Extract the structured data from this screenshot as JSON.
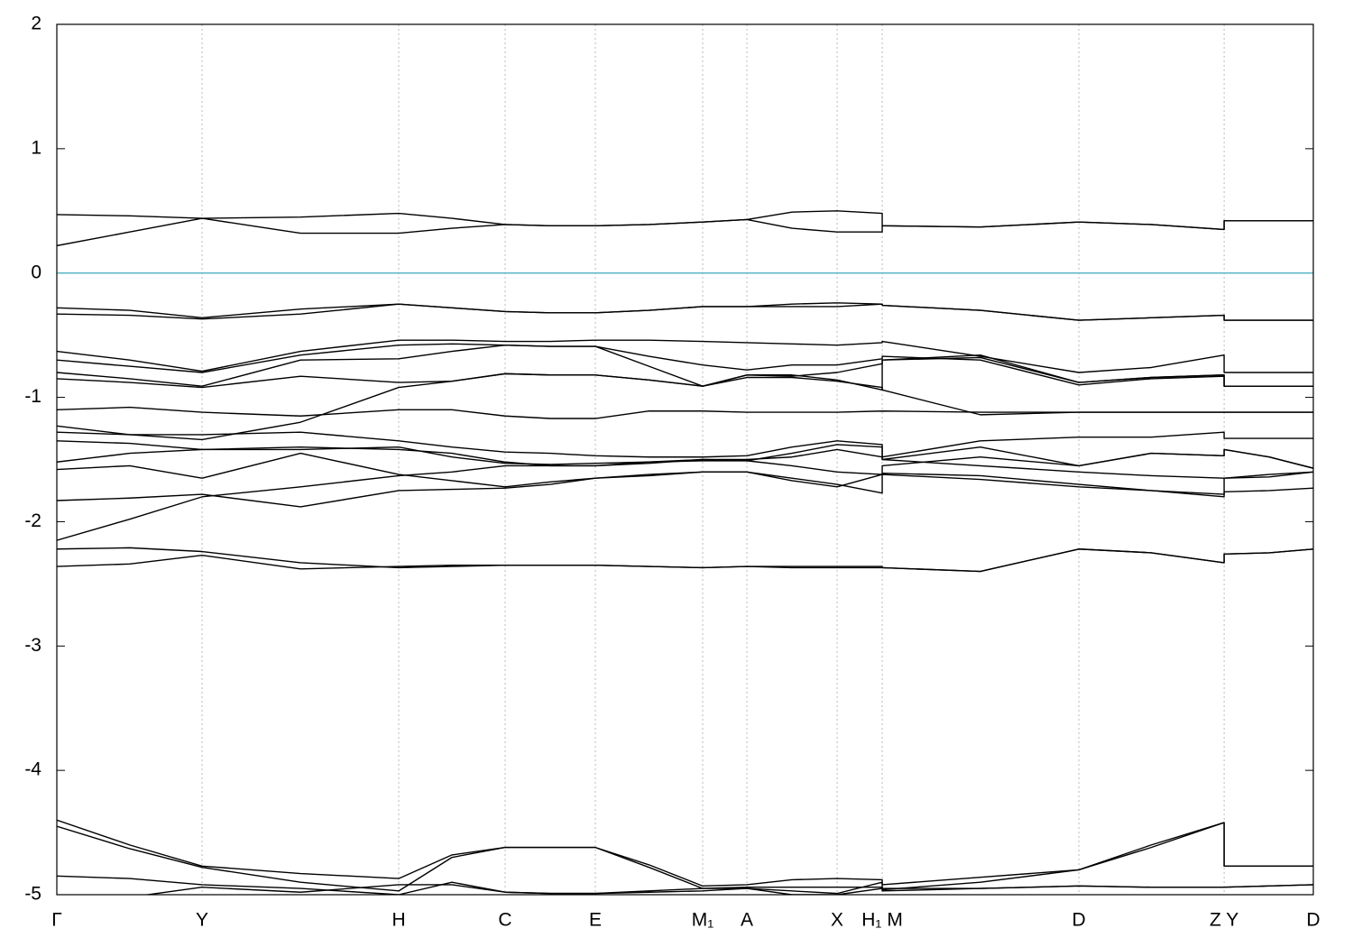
{
  "chart_data": {
    "type": "line",
    "x": [
      0,
      0.058,
      0.1156,
      0.194,
      0.2721,
      0.3145,
      0.3568,
      0.3927,
      0.4286,
      0.4713,
      0.514,
      0.5492,
      0.585,
      0.621,
      0.6569,
      0.6569,
      0.735,
      0.8134,
      0.871,
      0.929,
      0.929,
      0.965,
      1
    ],
    "xlim": [
      0,
      1
    ],
    "xticks": [
      {
        "value": 0,
        "label": "Γ"
      },
      {
        "value": 0.1156,
        "label": "Y"
      },
      {
        "value": 0.2721,
        "label": "H"
      },
      {
        "value": 0.3568,
        "label": "C"
      },
      {
        "value": 0.4286,
        "label": "E"
      },
      {
        "value": 0.514,
        "label": "M₁"
      },
      {
        "value": 0.5492,
        "label": "A"
      },
      {
        "value": 0.621,
        "label": "X"
      },
      {
        "value": 0.6569,
        "label": "H₁ M"
      },
      {
        "value": 0.8134,
        "label": "D"
      },
      {
        "value": 0.929,
        "label": "Z Y"
      },
      {
        "value": 1,
        "label": "D"
      }
    ],
    "ylim": [
      -5,
      2
    ],
    "yticks": [
      -5,
      -4,
      -3,
      -2,
      -1,
      0,
      1,
      2
    ],
    "grid": true,
    "zero_line_color": "#5ab4c8",
    "series": [
      {
        "color": "#000000",
        "values": [
          0.47,
          0.46,
          0.44,
          0.45,
          0.48,
          0.44,
          0.39,
          0.38,
          0.38,
          0.39,
          0.41,
          0.43,
          0.49,
          0.5,
          0.48,
          0.38,
          0.37,
          0.41,
          0.39,
          0.35,
          0.42,
          0.42,
          0.42
        ]
      },
      {
        "color": "#000000",
        "values": [
          0.22,
          0.33,
          0.44,
          0.32,
          0.32,
          0.36,
          0.39,
          0.38,
          0.38,
          0.39,
          0.41,
          0.43,
          0.36,
          0.33,
          0.33,
          0.38,
          0.37,
          0.41,
          0.39,
          0.35,
          0.42,
          0.42,
          0.42
        ]
      },
      {
        "color": "#000000",
        "values": [
          -0.28,
          -0.3,
          -0.36,
          -0.29,
          -0.25,
          -0.28,
          -0.31,
          -0.32,
          -0.32,
          -0.3,
          -0.27,
          -0.27,
          -0.25,
          -0.24,
          -0.25,
          -0.26,
          -0.3,
          -0.38,
          -0.36,
          -0.34,
          -0.38,
          -0.38,
          -0.38
        ]
      },
      {
        "color": "#000000",
        "values": [
          -0.33,
          -0.34,
          -0.37,
          -0.33,
          -0.25,
          -0.28,
          -0.31,
          -0.32,
          -0.32,
          -0.3,
          -0.27,
          -0.27,
          -0.27,
          -0.27,
          -0.25,
          -0.26,
          -0.3,
          -0.38,
          -0.36,
          -0.34,
          -0.38,
          -0.38,
          -0.38
        ]
      },
      {
        "color": "#000000",
        "values": [
          -0.63,
          -0.7,
          -0.79,
          -0.63,
          -0.54,
          -0.54,
          -0.55,
          -0.55,
          -0.54,
          -0.54,
          -0.55,
          -0.56,
          -0.57,
          -0.58,
          -0.56,
          -0.55,
          -0.67,
          -0.8,
          -0.76,
          -0.66,
          -0.8,
          -0.8,
          -0.8
        ]
      },
      {
        "color": "#000000",
        "values": [
          -0.7,
          -0.75,
          -0.8,
          -0.66,
          -0.58,
          -0.57,
          -0.58,
          -0.59,
          -0.59,
          -0.67,
          -0.74,
          -0.78,
          -0.74,
          -0.74,
          -0.69,
          -0.67,
          -0.7,
          -0.9,
          -0.85,
          -0.83,
          -0.91,
          -0.91,
          -0.91
        ]
      },
      {
        "color": "#000000",
        "values": [
          -0.8,
          -0.85,
          -0.91,
          -0.7,
          -0.69,
          -0.63,
          -0.58,
          -0.59,
          -0.59,
          -0.75,
          -0.91,
          -0.82,
          -0.83,
          -0.8,
          -0.73,
          -0.7,
          -0.66,
          -0.88,
          -0.84,
          -0.82,
          -0.91,
          -0.91,
          -0.91
        ]
      },
      {
        "color": "#000000",
        "values": [
          -0.85,
          -0.88,
          -0.92,
          -0.83,
          -0.88,
          -0.87,
          -0.81,
          -0.82,
          -0.82,
          -0.86,
          -0.91,
          -0.84,
          -0.84,
          -0.87,
          -0.92,
          -0.94,
          -1.14,
          -1.12,
          -1.12,
          -1.12,
          -1.12,
          -1.12,
          -1.12
        ]
      },
      {
        "color": "#000000",
        "values": [
          -1.1,
          -1.08,
          -1.12,
          -1.15,
          -1.1,
          -1.1,
          -1.15,
          -1.17,
          -1.17,
          -1.11,
          -1.11,
          -1.12,
          -1.12,
          -1.12,
          -1.11,
          -1.11,
          -1.12,
          -1.12,
          -1.12,
          -1.12,
          -1.12,
          -1.12,
          -1.12
        ]
      },
      {
        "color": "#000000",
        "values": [
          -1.23,
          -1.3,
          -1.34,
          -1.2,
          -0.92,
          -0.87,
          -0.81,
          -0.82,
          -0.82,
          -0.86,
          -0.91,
          -0.82,
          -0.82,
          -0.86,
          -0.94,
          -0.7,
          -0.68,
          -0.88,
          -0.84,
          -0.82,
          -0.91,
          -0.91,
          -0.91
        ]
      },
      {
        "color": "#000000",
        "values": [
          -1.28,
          -1.3,
          -1.3,
          -1.28,
          -1.35,
          -1.4,
          -1.44,
          -1.45,
          -1.47,
          -1.48,
          -1.48,
          -1.47,
          -1.4,
          -1.35,
          -1.38,
          -1.48,
          -1.35,
          -1.32,
          -1.32,
          -1.28,
          -1.33,
          -1.33,
          -1.33
        ]
      },
      {
        "color": "#000000",
        "values": [
          -1.35,
          -1.37,
          -1.42,
          -1.4,
          -1.42,
          -1.45,
          -1.52,
          -1.55,
          -1.55,
          -1.52,
          -1.5,
          -1.51,
          -1.45,
          -1.38,
          -1.4,
          -1.5,
          -1.55,
          -1.6,
          -1.63,
          -1.65,
          -1.65,
          -1.62,
          -1.6
        ]
      },
      {
        "color": "#000000",
        "values": [
          -1.52,
          -1.45,
          -1.42,
          -1.42,
          -1.4,
          -1.48,
          -1.53,
          -1.54,
          -1.53,
          -1.52,
          -1.51,
          -1.51,
          -1.55,
          -1.6,
          -1.62,
          -1.55,
          -1.48,
          -1.55,
          -1.45,
          -1.47,
          -1.42,
          -1.48,
          -1.57
        ]
      },
      {
        "color": "#000000",
        "values": [
          -1.58,
          -1.55,
          -1.65,
          -1.45,
          -1.62,
          -1.67,
          -1.72,
          -1.68,
          -1.65,
          -1.62,
          -1.6,
          -1.6,
          -1.67,
          -1.72,
          -1.62,
          -1.62,
          -1.66,
          -1.72,
          -1.75,
          -1.8,
          -1.76,
          -1.75,
          -1.73
        ]
      },
      {
        "color": "#000000",
        "values": [
          -1.83,
          -1.81,
          -1.78,
          -1.88,
          -1.75,
          -1.74,
          -1.73,
          -1.7,
          -1.65,
          -1.63,
          -1.6,
          -1.6,
          -1.65,
          -1.7,
          -1.77,
          -1.61,
          -1.63,
          -1.7,
          -1.75,
          -1.78,
          -1.65,
          -1.64,
          -1.6
        ]
      },
      {
        "color": "#000000",
        "values": [
          -2.15,
          -1.98,
          -1.8,
          -1.72,
          -1.63,
          -1.6,
          -1.55,
          -1.55,
          -1.55,
          -1.53,
          -1.5,
          -1.5,
          -1.48,
          -1.42,
          -1.48,
          -1.5,
          -1.4,
          -1.55,
          -1.45,
          -1.47,
          -1.42,
          -1.48,
          -1.57
        ]
      },
      {
        "color": "#000000",
        "values": [
          -2.22,
          -2.21,
          -2.24,
          -2.33,
          -2.37,
          -2.36,
          -2.35,
          -2.35,
          -2.35,
          -2.36,
          -2.37,
          -2.36,
          -2.36,
          -2.36,
          -2.36,
          -2.37,
          -2.4,
          -2.22,
          -2.25,
          -2.33,
          -2.26,
          -2.25,
          -2.22
        ]
      },
      {
        "color": "#000000",
        "values": [
          -2.36,
          -2.34,
          -2.27,
          -2.38,
          -2.36,
          -2.35,
          -2.35,
          -2.35,
          -2.35,
          -2.36,
          -2.37,
          -2.36,
          -2.37,
          -2.37,
          -2.37,
          -2.37,
          -2.4,
          -2.22,
          -2.25,
          -2.33,
          -2.26,
          -2.25,
          -2.22
        ]
      },
      {
        "color": "#000000",
        "values": [
          -4.4,
          -4.6,
          -4.77,
          -4.83,
          -4.87,
          -4.68,
          -4.62,
          -4.62,
          -4.62,
          -4.76,
          -4.93,
          -4.92,
          -4.88,
          -4.87,
          -4.88,
          -4.92,
          -4.86,
          -4.8,
          -4.6,
          -4.42,
          -4.77,
          -4.77,
          -4.77
        ]
      },
      {
        "color": "#000000",
        "values": [
          -4.45,
          -4.63,
          -4.78,
          -4.9,
          -4.97,
          -4.7,
          -4.62,
          -4.62,
          -4.62,
          -4.78,
          -4.95,
          -4.95,
          -5.0,
          -5.0,
          -4.95,
          -4.96,
          -4.9,
          -4.8,
          -4.62,
          -4.42,
          -4.77,
          -4.77,
          -4.77
        ]
      },
      {
        "color": "#000000",
        "values": [
          -4.85,
          -4.87,
          -4.92,
          -4.95,
          -5.0,
          -4.9,
          -4.98,
          -4.99,
          -4.99,
          -4.97,
          -4.95,
          -4.94,
          -4.94,
          -4.94,
          -4.94,
          -4.97,
          -4.95,
          -4.93,
          -4.94,
          -4.94,
          -4.94,
          -4.93,
          -4.92
        ]
      },
      {
        "color": "#000000",
        "values": [
          -5.05,
          -5.02,
          -4.94,
          -4.98,
          -4.92,
          -4.92,
          -4.98,
          -4.99,
          -4.99,
          -4.98,
          -4.97,
          -4.95,
          -4.97,
          -4.99,
          -4.9,
          -4.95,
          -4.95,
          -4.93,
          -4.94,
          -4.94,
          -4.94,
          -4.93,
          -4.92
        ]
      }
    ]
  }
}
